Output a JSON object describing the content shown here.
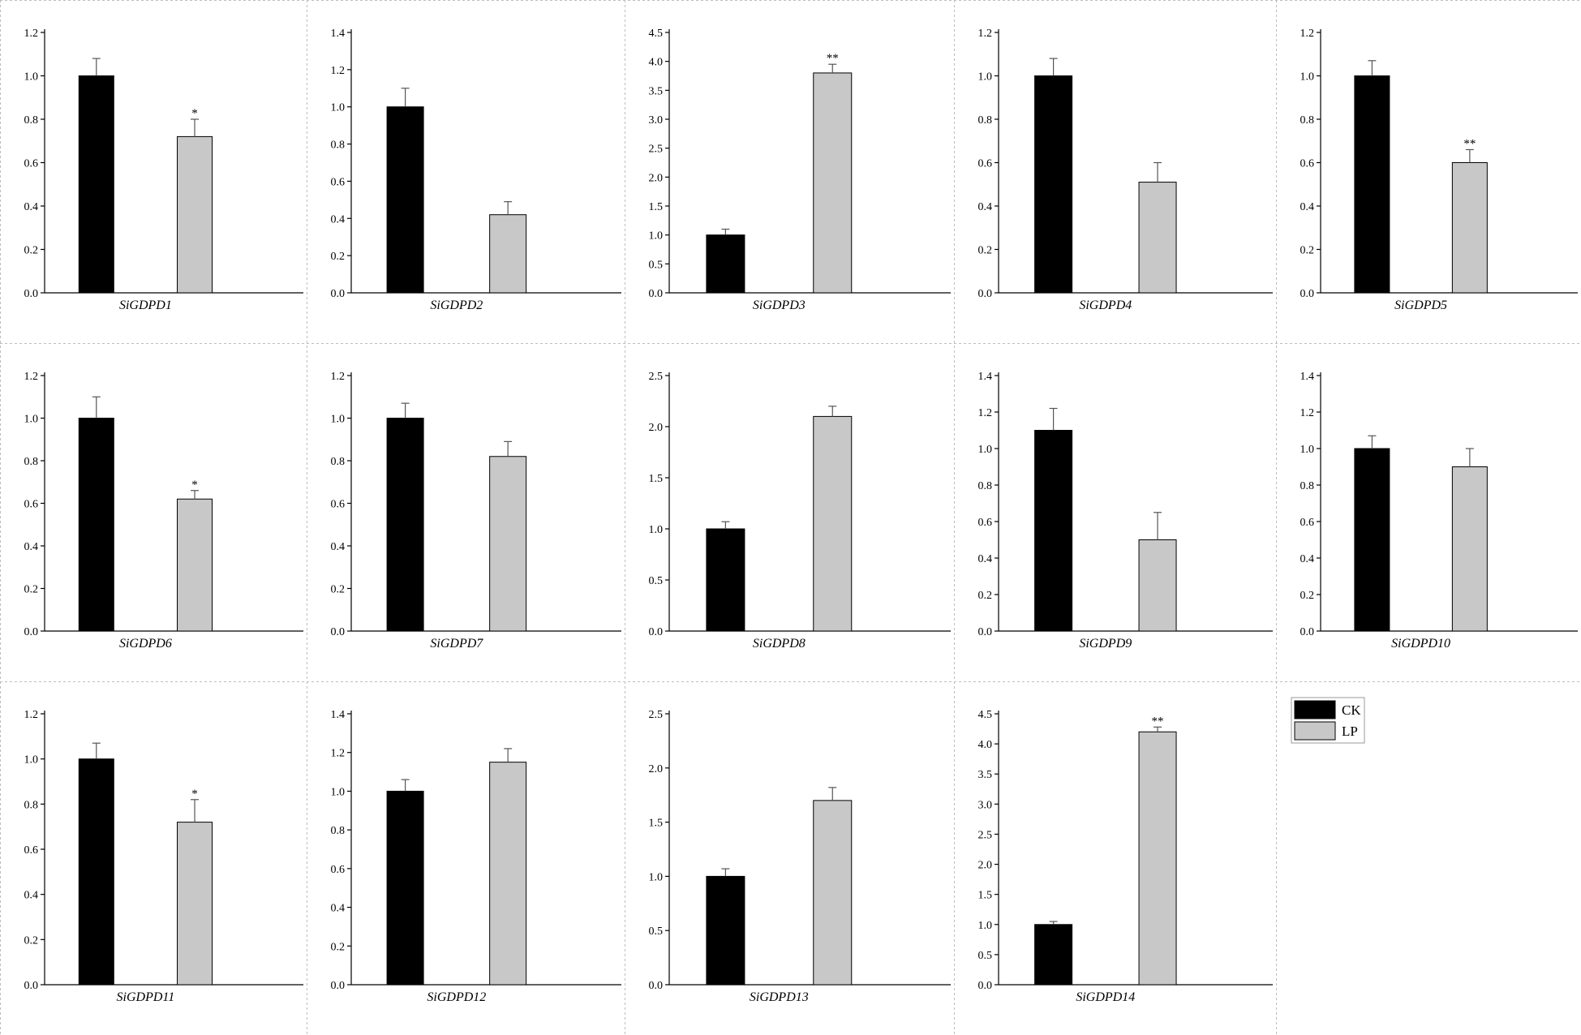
{
  "colors": {
    "CK": "#000000",
    "LP": "#c8c8c8"
  },
  "legend": [
    {
      "key": "CK",
      "label": "CK"
    },
    {
      "key": "LP",
      "label": "LP"
    }
  ],
  "chart_data": [
    {
      "type": "bar",
      "gene": "SiGDPD1",
      "xlabel": "SiGDPD1",
      "ylim": [
        0,
        1.2
      ],
      "yticks": [
        "0.0",
        "0.2",
        "0.4",
        "0.6",
        "0.8",
        "1.0",
        "1.2"
      ],
      "series": [
        {
          "name": "CK",
          "value": 1.0,
          "error": 0.08,
          "sig": ""
        },
        {
          "name": "LP",
          "value": 0.72,
          "error": 0.08,
          "sig": "*"
        }
      ]
    },
    {
      "type": "bar",
      "gene": "SiGDPD2",
      "xlabel": "SiGDPD2",
      "ylim": [
        0,
        1.4
      ],
      "yticks": [
        "0.0",
        "0.2",
        "0.4",
        "0.6",
        "0.8",
        "1.0",
        "1.2",
        "1.4"
      ],
      "series": [
        {
          "name": "CK",
          "value": 1.0,
          "error": 0.1,
          "sig": ""
        },
        {
          "name": "LP",
          "value": 0.42,
          "error": 0.07,
          "sig": ""
        }
      ]
    },
    {
      "type": "bar",
      "gene": "SiGDPD3",
      "xlabel": "SiGDPD3",
      "ylim": [
        0,
        4.5
      ],
      "yticks": [
        "0.0",
        "0.5",
        "1.0",
        "1.5",
        "2.0",
        "2.5",
        "3.0",
        "3.5",
        "4.0",
        "4.5"
      ],
      "series": [
        {
          "name": "CK",
          "value": 1.0,
          "error": 0.1,
          "sig": ""
        },
        {
          "name": "LP",
          "value": 3.8,
          "error": 0.15,
          "sig": "**"
        }
      ]
    },
    {
      "type": "bar",
      "gene": "SiGDPD4",
      "xlabel": "SiGDPD4",
      "ylim": [
        0,
        1.2
      ],
      "yticks": [
        "0.0",
        "0.2",
        "0.4",
        "0.6",
        "0.8",
        "1.0",
        "1.2"
      ],
      "series": [
        {
          "name": "CK",
          "value": 1.0,
          "error": 0.08,
          "sig": ""
        },
        {
          "name": "LP",
          "value": 0.51,
          "error": 0.09,
          "sig": ""
        }
      ]
    },
    {
      "type": "bar",
      "gene": "SiGDPD5",
      "xlabel": "SiGDPD5",
      "ylim": [
        0,
        1.2
      ],
      "yticks": [
        "0.0",
        "0.2",
        "0.4",
        "0.6",
        "0.8",
        "1.0",
        "1.2"
      ],
      "series": [
        {
          "name": "CK",
          "value": 1.0,
          "error": 0.07,
          "sig": ""
        },
        {
          "name": "LP",
          "value": 0.6,
          "error": 0.06,
          "sig": "**"
        }
      ]
    },
    {
      "type": "bar",
      "gene": "SiGDPD6",
      "xlabel": "SiGDPD6",
      "ylim": [
        0,
        1.2
      ],
      "yticks": [
        "0.0",
        "0.2",
        "0.4",
        "0.6",
        "0.8",
        "1.0",
        "1.2"
      ],
      "series": [
        {
          "name": "CK",
          "value": 1.0,
          "error": 0.1,
          "sig": ""
        },
        {
          "name": "LP",
          "value": 0.62,
          "error": 0.04,
          "sig": "*"
        }
      ]
    },
    {
      "type": "bar",
      "gene": "SiGDPD7",
      "xlabel": "SiGDPD7",
      "ylim": [
        0,
        1.2
      ],
      "yticks": [
        "0.0",
        "0.2",
        "0.4",
        "0.6",
        "0.8",
        "1.0",
        "1.2"
      ],
      "series": [
        {
          "name": "CK",
          "value": 1.0,
          "error": 0.07,
          "sig": ""
        },
        {
          "name": "LP",
          "value": 0.82,
          "error": 0.07,
          "sig": ""
        }
      ]
    },
    {
      "type": "bar",
      "gene": "SiGDPD8",
      "xlabel": "SiGDPD8",
      "ylim": [
        0,
        2.5
      ],
      "yticks": [
        "0.0",
        "0.5",
        "1.0",
        "1.5",
        "2.0",
        "2.5"
      ],
      "series": [
        {
          "name": "CK",
          "value": 1.0,
          "error": 0.07,
          "sig": ""
        },
        {
          "name": "LP",
          "value": 2.1,
          "error": 0.1,
          "sig": ""
        }
      ]
    },
    {
      "type": "bar",
      "gene": "SiGDPD9",
      "xlabel": "SiGDPD9",
      "ylim": [
        0,
        1.4
      ],
      "yticks": [
        "0.0",
        "0.2",
        "0.4",
        "0.6",
        "0.8",
        "1.0",
        "1.2",
        "1.4"
      ],
      "series": [
        {
          "name": "CK",
          "value": 1.1,
          "error": 0.12,
          "sig": ""
        },
        {
          "name": "LP",
          "value": 0.5,
          "error": 0.15,
          "sig": ""
        }
      ]
    },
    {
      "type": "bar",
      "gene": "SiGDPD10",
      "xlabel": "SiGDPD10",
      "ylim": [
        0,
        1.4
      ],
      "yticks": [
        "0.0",
        "0.2",
        "0.4",
        "0.6",
        "0.8",
        "1.0",
        "1.2",
        "1.4"
      ],
      "series": [
        {
          "name": "CK",
          "value": 1.0,
          "error": 0.07,
          "sig": ""
        },
        {
          "name": "LP",
          "value": 0.9,
          "error": 0.1,
          "sig": ""
        }
      ]
    },
    {
      "type": "bar",
      "gene": "SiGDPD11",
      "xlabel": "SiGDPD11",
      "ylim": [
        0,
        1.2
      ],
      "yticks": [
        "0.0",
        "0.2",
        "0.4",
        "0.6",
        "0.8",
        "1.0",
        "1.2"
      ],
      "series": [
        {
          "name": "CK",
          "value": 1.0,
          "error": 0.07,
          "sig": ""
        },
        {
          "name": "LP",
          "value": 0.72,
          "error": 0.1,
          "sig": "*"
        }
      ]
    },
    {
      "type": "bar",
      "gene": "SiGDPD12",
      "xlabel": "SiGDPD12",
      "ylim": [
        0,
        1.4
      ],
      "yticks": [
        "0.0",
        "0.2",
        "0.4",
        "0.6",
        "0.8",
        "1.0",
        "1.2",
        "1.4"
      ],
      "series": [
        {
          "name": "CK",
          "value": 1.0,
          "error": 0.06,
          "sig": ""
        },
        {
          "name": "LP",
          "value": 1.15,
          "error": 0.07,
          "sig": ""
        }
      ]
    },
    {
      "type": "bar",
      "gene": "SiGDPD13",
      "xlabel": "SiGDPD13",
      "ylim": [
        0,
        2.5
      ],
      "yticks": [
        "0.0",
        "0.5",
        "1.0",
        "1.5",
        "2.0",
        "2.5"
      ],
      "series": [
        {
          "name": "CK",
          "value": 1.0,
          "error": 0.07,
          "sig": ""
        },
        {
          "name": "LP",
          "value": 1.7,
          "error": 0.12,
          "sig": ""
        }
      ]
    },
    {
      "type": "bar",
      "gene": "SiGDPD14",
      "xlabel": "SiGDPD14",
      "ylim": [
        0,
        4.5
      ],
      "yticks": [
        "0.0",
        "0.5",
        "1.0",
        "1.5",
        "2.0",
        "2.5",
        "3.0",
        "3.5",
        "4.0",
        "4.5"
      ],
      "series": [
        {
          "name": "CK",
          "value": 1.0,
          "error": 0.05,
          "sig": ""
        },
        {
          "name": "LP",
          "value": 4.2,
          "error": 0.08,
          "sig": "**"
        }
      ]
    }
  ]
}
